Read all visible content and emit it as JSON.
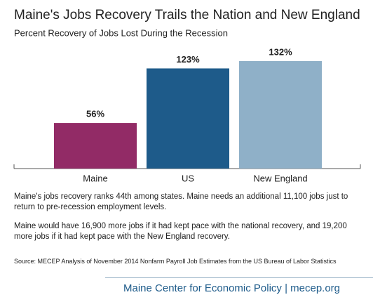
{
  "chart_data": {
    "type": "bar",
    "title": "Maine's Jobs Recovery Trails the Nation and New England",
    "subtitle": "Percent Recovery of Jobs Lost During the Recession",
    "categories": [
      "Maine",
      "US",
      "New England"
    ],
    "values": [
      56,
      123,
      132
    ],
    "value_labels": [
      "56%",
      "123%",
      "132%"
    ],
    "colors": [
      "#922b66",
      "#1e5b8a",
      "#8fb0c8"
    ],
    "notes": [
      "Maine's jobs recovery ranks 44th among states. Maine needs an additional 11,100 jobs just to return to pre-recession employment levels.",
      "Maine would have 16,900 more jobs if it had kept pace with the national recovery, and 19,200 more jobs if it had kept pace with the New England recovery."
    ],
    "source": "Source: MECEP Analysis of November 2014 Nonfarm Payroll Job Estimates from the US Bureau of Labor Statistics",
    "footer": "Maine Center for Economic Policy | mecep.org"
  }
}
